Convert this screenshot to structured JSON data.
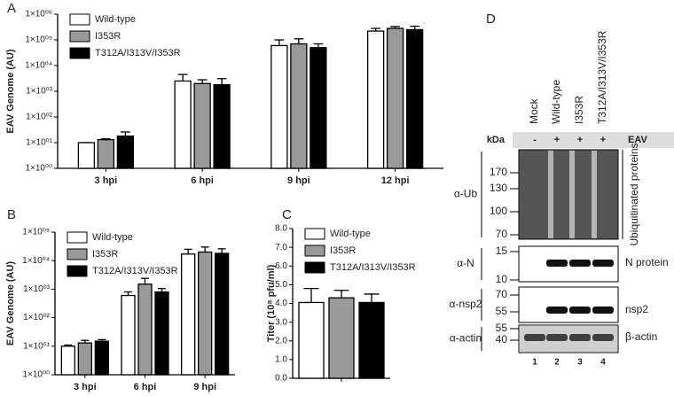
{
  "panel_letters": [
    "A",
    "B",
    "C",
    "D"
  ],
  "chart_data": [
    {
      "type": "bar",
      "y_label": "EAV Genome (AU)",
      "log_y": true,
      "legend": "upper left",
      "categories": [
        "3 hpi",
        "6 hpi",
        "9 hpi",
        "12 hpi"
      ],
      "ylim": [
        1,
        1000000
      ],
      "yticks": [
        {
          "value": 1,
          "label": "1×10⁰⁰"
        },
        {
          "value": 10,
          "label": "1×10⁰¹"
        },
        {
          "value": 100,
          "label": "1×10⁰²"
        },
        {
          "value": 1000,
          "label": "1×10⁰³"
        },
        {
          "value": 10000,
          "label": "1×10⁰⁴"
        },
        {
          "value": 100000,
          "label": "1×10⁰⁵"
        },
        {
          "value": 1000000,
          "label": "1×10⁰⁶"
        }
      ],
      "series": [
        {
          "name": "Wild-type",
          "color": "#ffffff",
          "values": [
            10,
            2500,
            60000,
            220000
          ],
          "errors": [
            0,
            2000,
            40000,
            60000
          ]
        },
        {
          "name": "I353R",
          "color": "#999999",
          "values": [
            13,
            2000,
            70000,
            280000
          ],
          "errors": [
            1,
            800,
            40000,
            50000
          ]
        },
        {
          "name": "T312A/I313V/I353R",
          "color": "#000000",
          "values": [
            18,
            1800,
            50000,
            250000
          ],
          "errors": [
            8,
            1300,
            20000,
            90000
          ]
        }
      ]
    },
    {
      "type": "bar",
      "y_label": "EAV Genome (AU)",
      "log_y": true,
      "legend": "upper left",
      "categories": [
        "3 hpi",
        "6 hpi",
        "9 hpi"
      ],
      "ylim": [
        1,
        100000
      ],
      "yticks": [
        {
          "value": 1,
          "label": "1×10⁰⁰"
        },
        {
          "value": 10,
          "label": "1×10⁰¹"
        },
        {
          "value": 100,
          "label": "1×10⁰²"
        },
        {
          "value": 1000,
          "label": "1×10⁰³"
        },
        {
          "value": 10000,
          "label": "1×10⁰⁴"
        },
        {
          "value": 100000,
          "label": "1×10⁰⁵"
        }
      ],
      "series": [
        {
          "name": "Wild-type",
          "color": "#ffffff",
          "values": [
            10,
            600,
            17000
          ],
          "errors": [
            1,
            200,
            8000
          ]
        },
        {
          "name": "I353R",
          "color": "#999999",
          "values": [
            13,
            1500,
            20000
          ],
          "errors": [
            3,
            900,
            10000
          ]
        },
        {
          "name": "T312A/I313V/I353R",
          "color": "#000000",
          "values": [
            15,
            800,
            18000
          ],
          "errors": [
            2,
            250,
            8000
          ]
        }
      ]
    },
    {
      "type": "bar",
      "y_label": "Titer (10⁸ pfu/ml)",
      "log_y": false,
      "legend": "upper left",
      "categories": [
        null
      ],
      "ylim": [
        0,
        8
      ],
      "yticks": [
        {
          "value": 0,
          "label": "0.0"
        },
        {
          "value": 1,
          "label": "1.0"
        },
        {
          "value": 2,
          "label": "2.0"
        },
        {
          "value": 3,
          "label": "3.0"
        },
        {
          "value": 4,
          "label": "4.0"
        },
        {
          "value": 5,
          "label": "5.0"
        },
        {
          "value": 6,
          "label": "6.0"
        },
        {
          "value": 7,
          "label": "7.0"
        },
        {
          "value": 8,
          "label": "8.0"
        }
      ],
      "series": [
        {
          "name": "Wild-type",
          "color": "#ffffff",
          "values": [
            4.05
          ],
          "errors": [
            0.75
          ]
        },
        {
          "name": "I353R",
          "color": "#999999",
          "values": [
            4.3
          ],
          "errors": [
            0.4
          ]
        },
        {
          "name": "T312A/I313V/I353R",
          "color": "#000000",
          "values": [
            4.05
          ],
          "errors": [
            0.45
          ]
        }
      ]
    }
  ],
  "blot": {
    "lanes": [
      "Mock",
      "Wild-type",
      "I353R",
      "T312A/I313V/I353R"
    ],
    "kda_label": "kDa",
    "treatment": [
      "-",
      "+",
      "+",
      "+"
    ],
    "treatment_label": "EAV",
    "rows": [
      {
        "antibody": "α-Ub",
        "markers": [
          170,
          130,
          100,
          70
        ],
        "label": "Ubiquitinated proteins"
      },
      {
        "antibody": "α-N",
        "markers": [
          15,
          10
        ],
        "label": "N protein"
      },
      {
        "antibody": "α-nsp2",
        "markers": [
          70,
          55
        ],
        "label": "nsp2"
      },
      {
        "antibody": "α-actin",
        "markers": [
          55,
          40
        ],
        "label": "β-actin"
      }
    ],
    "lane_numbers": [
      "1",
      "2",
      "3",
      "4"
    ]
  }
}
